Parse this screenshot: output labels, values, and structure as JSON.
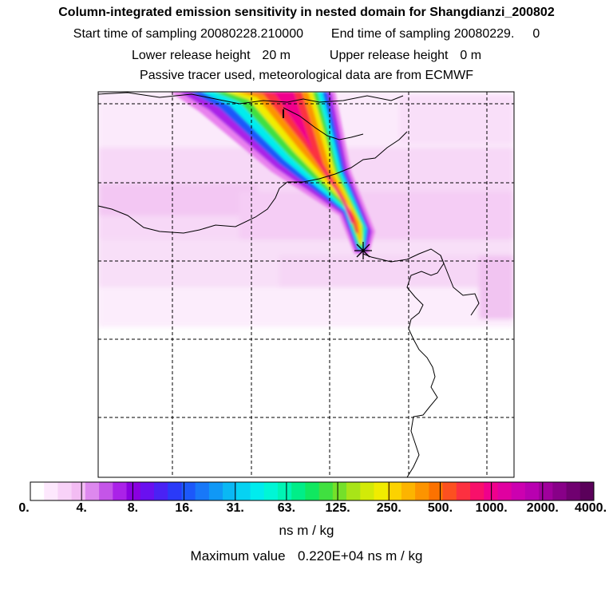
{
  "titles": {
    "line1": "Column-integrated emission sensitivity in nested domain for Shangdianzi_200802",
    "start_label": "Start time of sampling",
    "start_value": "20080228.210000",
    "end_label": "End time of sampling",
    "end_value": "20080229.",
    "end_suffix": "0",
    "lower_label": "Lower release height",
    "lower_value": "20 m",
    "upper_label": "Upper release height",
    "upper_value": "0 m",
    "line4": "Passive tracer used, meteorological data are from ECMWF"
  },
  "colorbar": {
    "tick_labels": [
      "0.",
      "4.",
      "8.",
      "16.",
      "31.",
      "63.",
      "125.",
      "250.",
      "500.",
      "1000.",
      "2000.",
      "4000."
    ],
    "colors": [
      "#ffffff",
      "#fde8fd",
      "#f8d2f8",
      "#f3bcf3",
      "#dd88ee",
      "#c455e8",
      "#aa22e8",
      "#8a00e0",
      "#6a10f0",
      "#4a22f4",
      "#2a3af8",
      "#1c58fa",
      "#1878f8",
      "#1098f6",
      "#0ab8f4",
      "#06d2f2",
      "#00ecee",
      "#00f6d6",
      "#00f4b4",
      "#00ee88",
      "#10e860",
      "#40e040",
      "#74e02a",
      "#a8e418",
      "#d2ea08",
      "#f0ec00",
      "#fcd200",
      "#fcb400",
      "#fc9400",
      "#fc7200",
      "#fc5020",
      "#fc3040",
      "#f8106a",
      "#f0008c",
      "#e000a0",
      "#cc00b0",
      "#b800b0",
      "#a0009c",
      "#880088",
      "#700070",
      "#5a005a"
    ],
    "unit": "ns m / kg",
    "max_label": "Maximum value",
    "max_value": "0.220E+04",
    "max_unit": "ns m / kg"
  },
  "map": {
    "receptor": "Shangdianzi",
    "plume_max": 2200
  }
}
